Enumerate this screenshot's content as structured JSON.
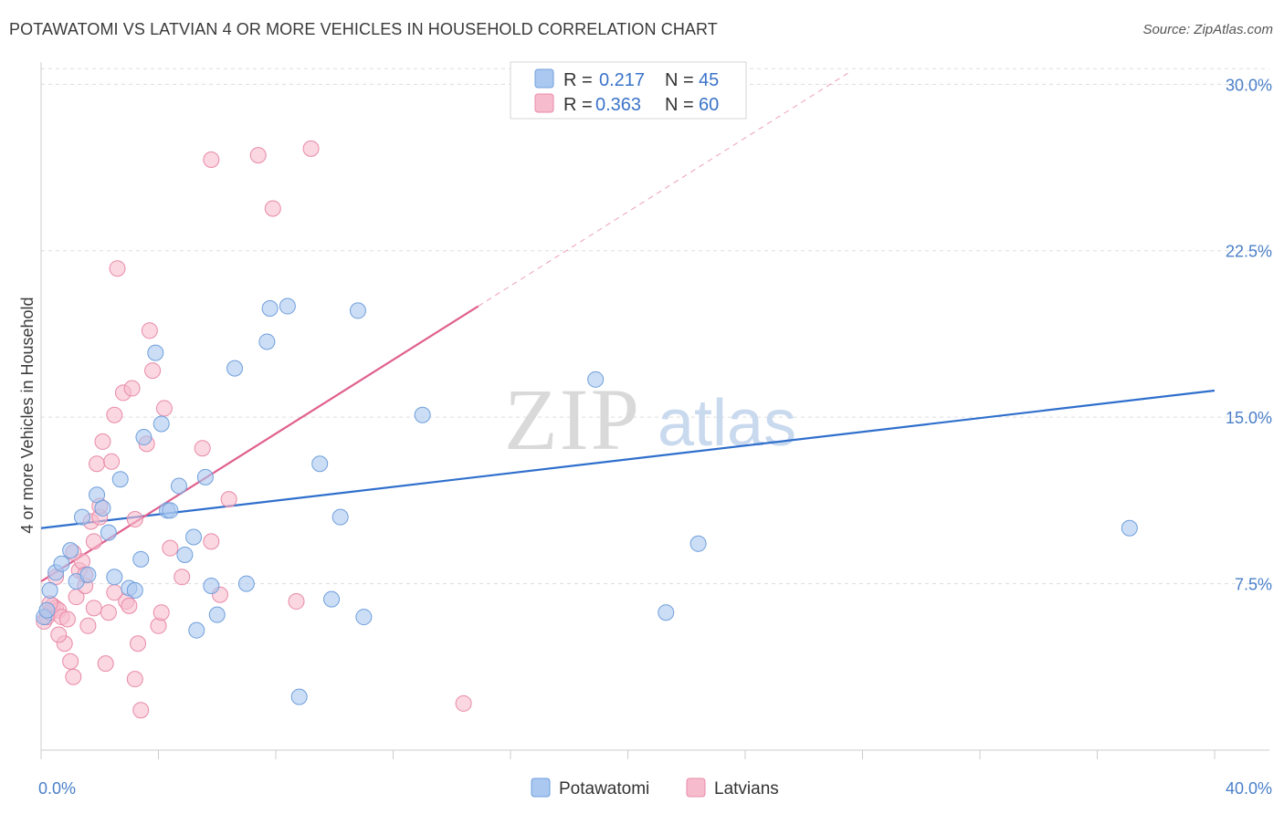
{
  "header": {
    "title": "POTAWATOMI VS LATVIAN 4 OR MORE VEHICLES IN HOUSEHOLD CORRELATION CHART",
    "source": "Source: ZipAtlas.com"
  },
  "watermark": {
    "zip": "ZIP",
    "atlas": "atlas"
  },
  "colors": {
    "potawatomi_fill": "#aac8f0",
    "potawatomi_stroke": "#6f9fdc",
    "potawatomi_line": "#2f6fcc",
    "latvians_fill": "#f6bccd",
    "latvians_stroke": "#e98aa8",
    "latvians_line": "#e0608e",
    "grid": "#dddddd",
    "axis_label": "#4a7fc9"
  },
  "legend": {
    "rows": [
      {
        "r_label": "R =",
        "r_value": "0.217",
        "n_label": "N =",
        "n_value": "45"
      },
      {
        "r_label": "R =",
        "r_value": "0.363",
        "n_label": "N =",
        "n_value": "60"
      }
    ]
  },
  "chart_data": {
    "type": "scatter",
    "title": "POTAWATOMI VS LATVIAN 4 OR MORE VEHICLES IN HOUSEHOLD CORRELATION CHART",
    "xlabel": "",
    "ylabel": "4 or more Vehicles in Household",
    "xlim": [
      0,
      40
    ],
    "ylim": [
      0,
      31
    ],
    "x_tick_labels": [
      {
        "value": 0,
        "label": "0.0%"
      },
      {
        "value": 40,
        "label": "40.0%"
      }
    ],
    "y_ticks": [
      {
        "value": 7.5,
        "label": "7.5%"
      },
      {
        "value": 15,
        "label": "15.0%"
      },
      {
        "value": 22.5,
        "label": "22.5%"
      },
      {
        "value": 30,
        "label": "30.0%"
      }
    ],
    "x_minor_ticks": [
      0,
      4,
      8,
      12,
      16,
      20,
      24,
      28,
      32,
      36,
      40
    ],
    "legend_position": "top-center",
    "series": [
      {
        "name": "Potawatomi",
        "points": [
          [
            0.3,
            7.2
          ],
          [
            0.5,
            8.0
          ],
          [
            0.7,
            8.4
          ],
          [
            1.0,
            9.0
          ],
          [
            1.2,
            7.6
          ],
          [
            1.4,
            10.5
          ],
          [
            1.6,
            7.9
          ],
          [
            1.9,
            11.5
          ],
          [
            2.1,
            10.9
          ],
          [
            2.3,
            9.8
          ],
          [
            2.5,
            7.8
          ],
          [
            2.7,
            12.2
          ],
          [
            3.0,
            7.3
          ],
          [
            3.2,
            7.2
          ],
          [
            3.4,
            8.6
          ],
          [
            3.5,
            14.1
          ],
          [
            3.9,
            17.9
          ],
          [
            4.1,
            14.7
          ],
          [
            4.3,
            10.8
          ],
          [
            4.4,
            10.8
          ],
          [
            4.7,
            11.9
          ],
          [
            4.9,
            8.8
          ],
          [
            5.2,
            9.6
          ],
          [
            5.3,
            5.4
          ],
          [
            5.6,
            12.3
          ],
          [
            5.8,
            7.4
          ],
          [
            6.0,
            6.1
          ],
          [
            6.6,
            17.2
          ],
          [
            7.0,
            7.5
          ],
          [
            7.7,
            18.4
          ],
          [
            7.8,
            19.9
          ],
          [
            8.4,
            20.0
          ],
          [
            8.8,
            2.4
          ],
          [
            9.5,
            12.9
          ],
          [
            9.9,
            6.8
          ],
          [
            10.2,
            10.5
          ],
          [
            10.8,
            19.8
          ],
          [
            11.0,
            6.0
          ],
          [
            13.0,
            15.1
          ],
          [
            18.9,
            16.7
          ],
          [
            21.3,
            6.2
          ],
          [
            22.4,
            9.3
          ],
          [
            37.1,
            10.0
          ],
          [
            0.1,
            6.0
          ],
          [
            0.2,
            6.3
          ]
        ],
        "trend": {
          "x": [
            0,
            40
          ],
          "y": [
            10.0,
            16.2
          ]
        }
      },
      {
        "name": "Latvians",
        "points": [
          [
            0.1,
            5.8
          ],
          [
            0.2,
            6.0
          ],
          [
            0.3,
            6.2
          ],
          [
            0.4,
            6.5
          ],
          [
            0.5,
            6.4
          ],
          [
            0.6,
            6.3
          ],
          [
            0.7,
            6.0
          ],
          [
            0.8,
            4.8
          ],
          [
            0.9,
            5.9
          ],
          [
            1.0,
            4.0
          ],
          [
            1.1,
            3.3
          ],
          [
            1.2,
            6.9
          ],
          [
            1.3,
            8.1
          ],
          [
            1.4,
            8.5
          ],
          [
            1.5,
            7.4
          ],
          [
            1.6,
            5.6
          ],
          [
            1.7,
            10.3
          ],
          [
            1.8,
            9.4
          ],
          [
            1.9,
            12.9
          ],
          [
            2.0,
            10.5
          ],
          [
            2.1,
            13.9
          ],
          [
            2.2,
            3.9
          ],
          [
            2.3,
            6.2
          ],
          [
            2.4,
            13.0
          ],
          [
            2.5,
            15.1
          ],
          [
            2.6,
            21.7
          ],
          [
            2.8,
            16.1
          ],
          [
            2.9,
            6.7
          ],
          [
            3.0,
            6.5
          ],
          [
            3.1,
            16.3
          ],
          [
            3.2,
            3.2
          ],
          [
            3.3,
            4.8
          ],
          [
            3.4,
            1.8
          ],
          [
            3.6,
            13.8
          ],
          [
            3.7,
            18.9
          ],
          [
            3.8,
            17.1
          ],
          [
            4.0,
            5.6
          ],
          [
            4.1,
            6.2
          ],
          [
            4.2,
            15.4
          ],
          [
            4.4,
            9.1
          ],
          [
            4.8,
            7.8
          ],
          [
            5.5,
            13.6
          ],
          [
            5.8,
            9.4
          ],
          [
            6.1,
            7.0
          ],
          [
            6.4,
            11.3
          ],
          [
            5.8,
            26.6
          ],
          [
            7.4,
            26.8
          ],
          [
            7.9,
            24.4
          ],
          [
            8.7,
            6.7
          ],
          [
            9.2,
            27.1
          ],
          [
            14.4,
            2.1
          ],
          [
            0.5,
            7.8
          ],
          [
            1.8,
            6.4
          ],
          [
            2.5,
            7.1
          ],
          [
            3.2,
            10.4
          ],
          [
            0.3,
            6.6
          ],
          [
            1.1,
            8.9
          ],
          [
            2.0,
            11.0
          ],
          [
            0.6,
            5.2
          ],
          [
            1.5,
            7.9
          ]
        ],
        "trend": {
          "x": [
            0,
            14.9
          ],
          "y": [
            7.6,
            20.0
          ]
        },
        "trend_extension": {
          "x": [
            14.9,
            27.5
          ],
          "y": [
            20.0,
            30.5
          ]
        }
      }
    ]
  },
  "bottom_legend": {
    "items": [
      {
        "label": "Potawatomi"
      },
      {
        "label": "Latvians"
      }
    ]
  }
}
